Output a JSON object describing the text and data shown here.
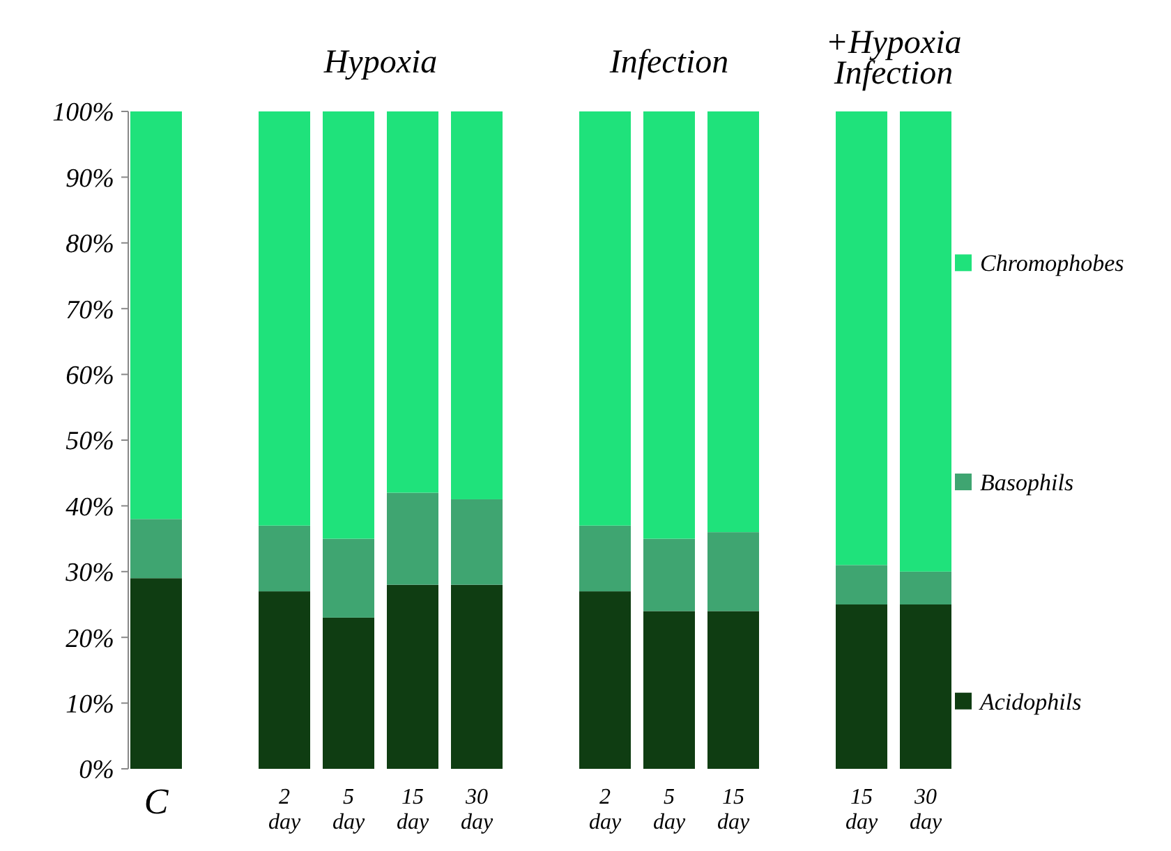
{
  "chart_data": {
    "type": "bar",
    "stacked": true,
    "categories": [
      "C",
      null,
      "2 day",
      "5 day",
      "15 day",
      "30 day",
      null,
      "2 day",
      "5 day",
      "15 day",
      null,
      "15 day",
      "30 day"
    ],
    "series": [
      {
        "name": "Acidophils",
        "color": "#0f3d12",
        "values": [
          29,
          null,
          27,
          23,
          28,
          28,
          null,
          27,
          24,
          24,
          null,
          25,
          25
        ]
      },
      {
        "name": "Basophils",
        "color": "#3fa571",
        "values": [
          9,
          null,
          10,
          12,
          14,
          13,
          null,
          10,
          11,
          12,
          null,
          6,
          5
        ]
      },
      {
        "name": "Chromophobes",
        "color": "#1fe27b",
        "values": [
          62,
          null,
          63,
          65,
          58,
          59,
          null,
          63,
          65,
          64,
          null,
          69,
          70
        ]
      }
    ],
    "ylim": [
      0,
      100
    ],
    "yticks": [
      {
        "value": 0,
        "label": "0%"
      },
      {
        "value": 10,
        "label": "10%"
      },
      {
        "value": 20,
        "label": "20%"
      },
      {
        "value": 30,
        "label": "30%"
      },
      {
        "value": 40,
        "label": "40%"
      },
      {
        "value": 50,
        "label": "50%"
      },
      {
        "value": 60,
        "label": "60%"
      },
      {
        "value": 70,
        "label": "70%"
      },
      {
        "value": 80,
        "label": "80%"
      },
      {
        "value": 90,
        "label": "90%"
      },
      {
        "value": 100,
        "label": "100%"
      }
    ],
    "annotations": [
      "Hypoxia",
      "Infection",
      "+Hypoxia Infection"
    ],
    "legend": "right",
    "grid": false
  }
}
